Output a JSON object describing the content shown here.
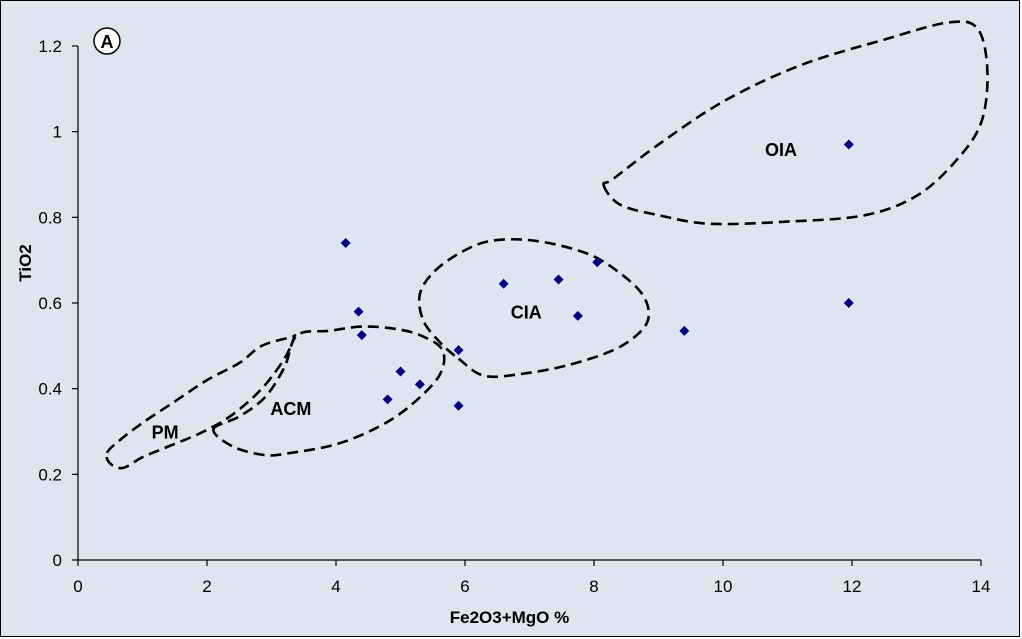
{
  "chart_data": {
    "type": "scatter",
    "panel_label": "A",
    "xlabel": "Fe2O3+MgO %",
    "ylabel": "TiO2",
    "xlim": [
      0,
      14
    ],
    "ylim": [
      0,
      1.2
    ],
    "x_ticks": [
      "0",
      "2",
      "4",
      "6",
      "8",
      "10",
      "12",
      "14"
    ],
    "y_ticks": [
      "0",
      "0.2",
      "0.4",
      "0.6",
      "0.8",
      "1",
      "1.2"
    ],
    "grid": false,
    "marker_color": "#000080",
    "points": [
      {
        "x": 4.15,
        "y": 0.74
      },
      {
        "x": 4.35,
        "y": 0.58
      },
      {
        "x": 4.4,
        "y": 0.525
      },
      {
        "x": 5.0,
        "y": 0.44
      },
      {
        "x": 5.3,
        "y": 0.41
      },
      {
        "x": 4.8,
        "y": 0.375
      },
      {
        "x": 5.9,
        "y": 0.49
      },
      {
        "x": 5.9,
        "y": 0.36
      },
      {
        "x": 6.6,
        "y": 0.645
      },
      {
        "x": 7.45,
        "y": 0.655
      },
      {
        "x": 8.05,
        "y": 0.695
      },
      {
        "x": 7.75,
        "y": 0.57
      },
      {
        "x": 9.4,
        "y": 0.535
      },
      {
        "x": 11.95,
        "y": 0.97
      },
      {
        "x": 11.95,
        "y": 0.6
      }
    ],
    "regions": [
      {
        "label": "PM",
        "label_pos": [
          1.35,
          0.3
        ],
        "boundary": [
          [
            0.45,
            0.25
          ],
          [
            0.65,
            0.28
          ],
          [
            1.0,
            0.32
          ],
          [
            1.5,
            0.37
          ],
          [
            2.0,
            0.42
          ],
          [
            2.5,
            0.46
          ],
          [
            2.85,
            0.5
          ],
          [
            3.3,
            0.52
          ],
          [
            3.35,
            0.52
          ],
          [
            3.2,
            0.47
          ],
          [
            2.85,
            0.4
          ],
          [
            2.4,
            0.34
          ],
          [
            1.95,
            0.3
          ],
          [
            1.4,
            0.265
          ],
          [
            1.0,
            0.24
          ],
          [
            0.7,
            0.215
          ],
          [
            0.5,
            0.225
          ],
          [
            0.45,
            0.25
          ]
        ]
      },
      {
        "label": "ACM",
        "label_pos": [
          3.3,
          0.355
        ],
        "boundary": [
          [
            2.1,
            0.305
          ],
          [
            2.5,
            0.335
          ],
          [
            2.9,
            0.38
          ],
          [
            3.2,
            0.45
          ],
          [
            3.4,
            0.525
          ],
          [
            3.9,
            0.535
          ],
          [
            4.4,
            0.545
          ],
          [
            4.9,
            0.54
          ],
          [
            5.3,
            0.525
          ],
          [
            5.65,
            0.49
          ],
          [
            5.6,
            0.43
          ],
          [
            5.15,
            0.36
          ],
          [
            4.65,
            0.31
          ],
          [
            4.0,
            0.27
          ],
          [
            3.3,
            0.25
          ],
          [
            2.9,
            0.245
          ],
          [
            2.4,
            0.265
          ],
          [
            2.1,
            0.305
          ]
        ]
      },
      {
        "label": "CIA",
        "label_pos": [
          6.95,
          0.58
        ],
        "boundary": [
          [
            5.9,
            0.47
          ],
          [
            6.3,
            0.43
          ],
          [
            6.9,
            0.435
          ],
          [
            7.6,
            0.455
          ],
          [
            8.3,
            0.49
          ],
          [
            8.7,
            0.53
          ],
          [
            8.85,
            0.57
          ],
          [
            8.75,
            0.62
          ],
          [
            8.4,
            0.67
          ],
          [
            7.9,
            0.715
          ],
          [
            7.1,
            0.745
          ],
          [
            6.4,
            0.745
          ],
          [
            5.9,
            0.715
          ],
          [
            5.5,
            0.67
          ],
          [
            5.3,
            0.62
          ],
          [
            5.35,
            0.56
          ],
          [
            5.6,
            0.51
          ],
          [
            5.9,
            0.47
          ]
        ]
      },
      {
        "label": "OIA",
        "label_pos": [
          10.9,
          0.96
        ],
        "boundary": [
          [
            8.15,
            0.875
          ],
          [
            8.4,
            0.83
          ],
          [
            9.0,
            0.805
          ],
          [
            9.8,
            0.785
          ],
          [
            11.0,
            0.79
          ],
          [
            12.2,
            0.805
          ],
          [
            13.0,
            0.85
          ],
          [
            13.6,
            0.93
          ],
          [
            14.0,
            1.02
          ],
          [
            14.1,
            1.14
          ],
          [
            13.95,
            1.24
          ],
          [
            13.5,
            1.255
          ],
          [
            12.5,
            1.215
          ],
          [
            11.2,
            1.155
          ],
          [
            10.0,
            1.07
          ],
          [
            9.0,
            0.97
          ],
          [
            8.3,
            0.89
          ],
          [
            8.15,
            0.875
          ]
        ]
      }
    ]
  }
}
